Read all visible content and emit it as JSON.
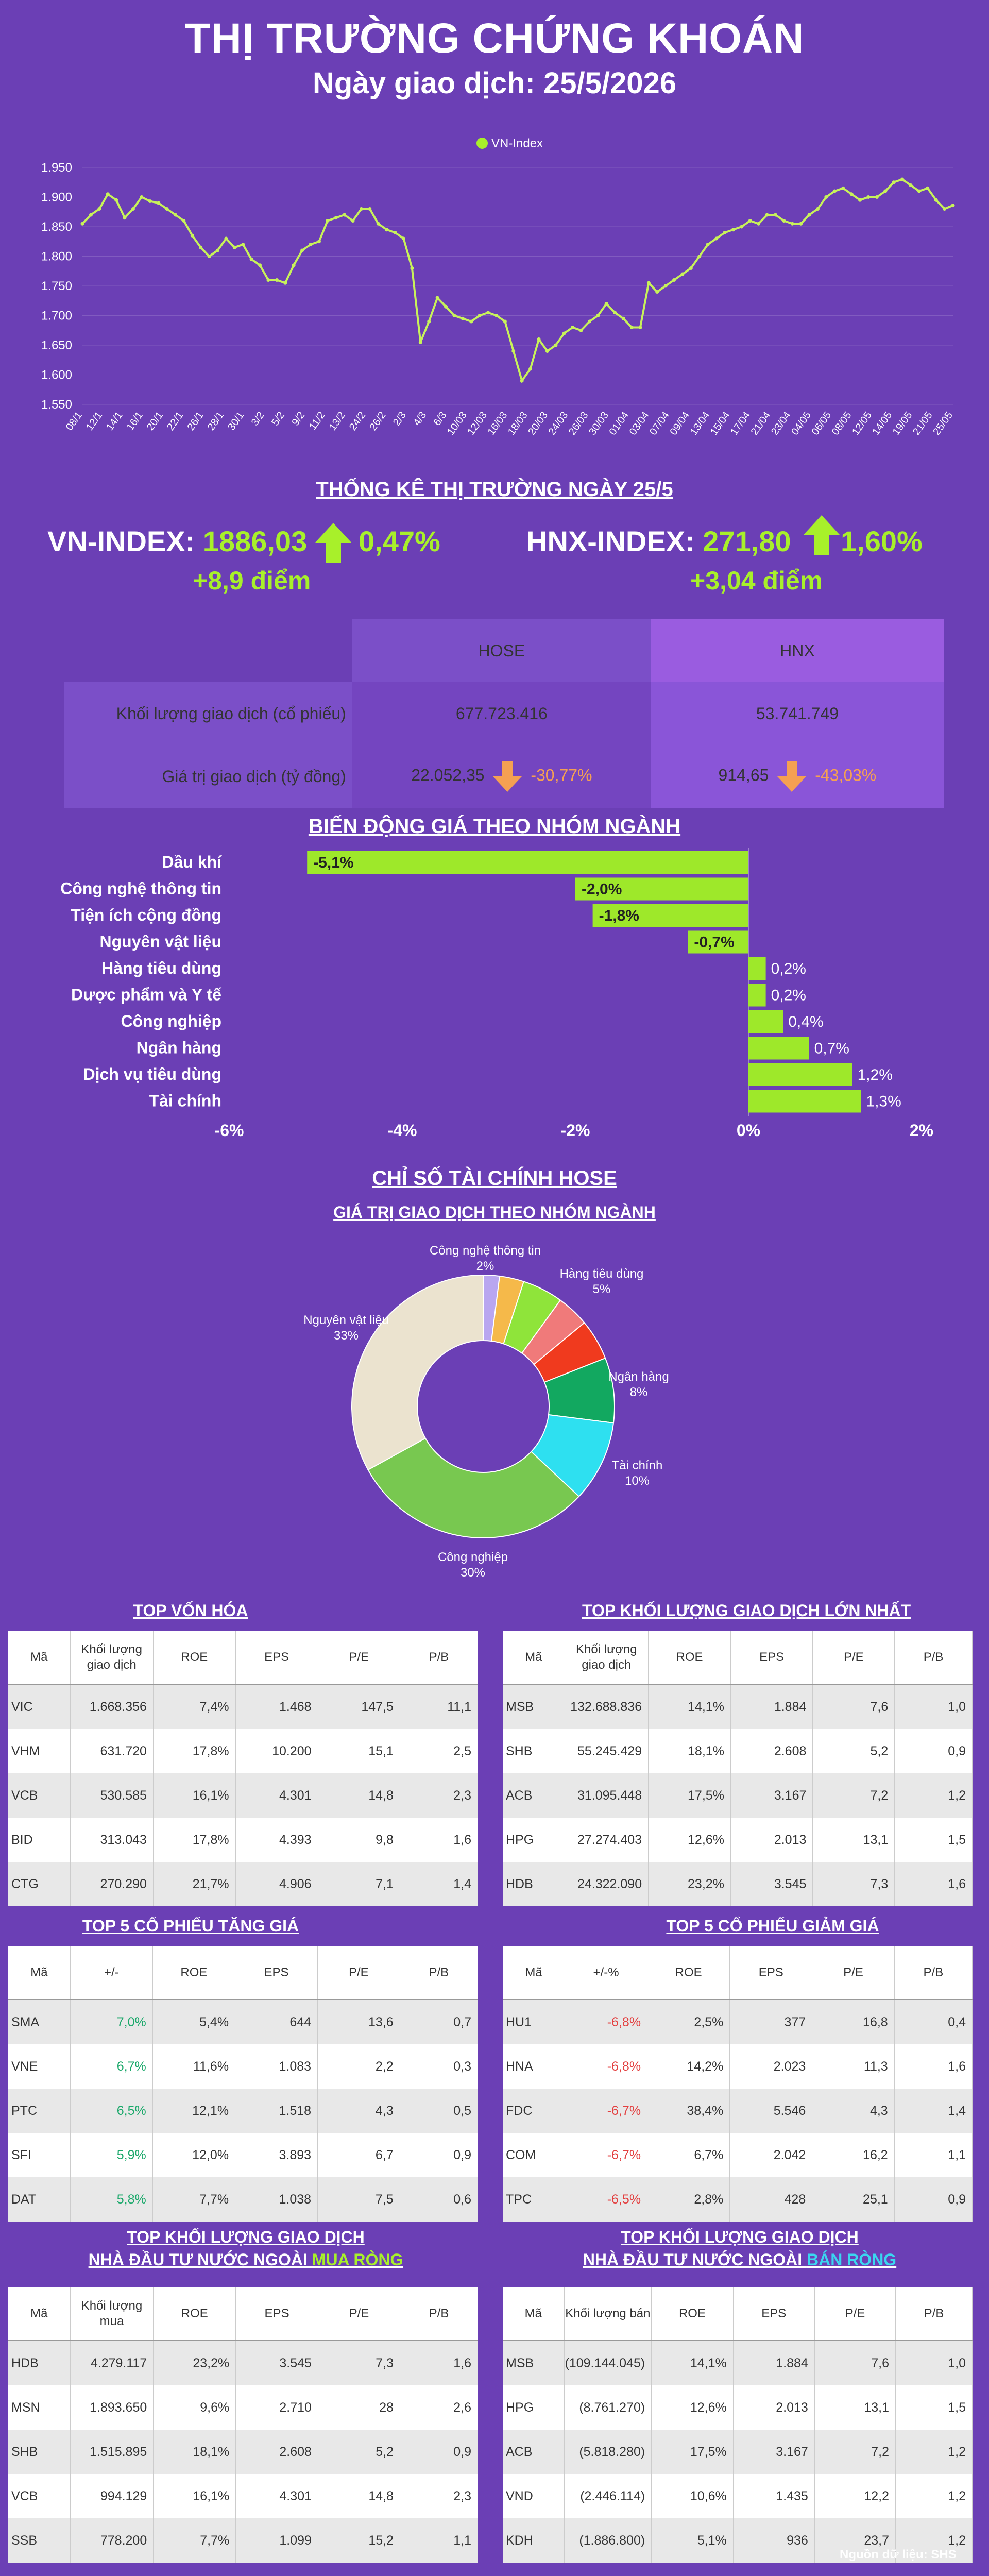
{
  "header": {
    "title": "THỊ TRƯỜNG CHỨNG KHOÁN",
    "subtitle": "Ngày giao dịch: 25/5/2026"
  },
  "colors": {
    "bg": "#6b3fb5",
    "accent": "#a8f02a",
    "down": "#f5a052"
  },
  "chart_data": [
    {
      "type": "line",
      "legend": "VN-Index",
      "ylim": [
        1550,
        1950
      ],
      "yticks": [
        "1.550",
        "1.600",
        "1.650",
        "1.700",
        "1.750",
        "1.800",
        "1.850",
        "1.900",
        "1.950"
      ],
      "xticks": [
        "08/1",
        "12/1",
        "14/1",
        "16/1",
        "20/1",
        "22/1",
        "26/1",
        "28/1",
        "30/1",
        "3/2",
        "5/2",
        "9/2",
        "11/2",
        "13/2",
        "24/2",
        "26/2",
        "2/3",
        "4/3",
        "6/3",
        "10/03",
        "12/03",
        "16/03",
        "18/03",
        "20/03",
        "24/03",
        "26/03",
        "30/03",
        "01/04",
        "03/04",
        "07/04",
        "09/04",
        "13/04",
        "15/04",
        "17/04",
        "21/04",
        "23/04",
        "04/05",
        "06/05",
        "08/05",
        "12/05",
        "14/05",
        "19/05",
        "21/05",
        "25/05"
      ],
      "values": [
        1855,
        1870,
        1880,
        1905,
        1895,
        1865,
        1880,
        1900,
        1893,
        1890,
        1880,
        1870,
        1860,
        1835,
        1815,
        1800,
        1810,
        1830,
        1815,
        1820,
        1795,
        1785,
        1760,
        1760,
        1755,
        1785,
        1810,
        1820,
        1825,
        1860,
        1865,
        1870,
        1860,
        1880,
        1880,
        1855,
        1845,
        1840,
        1830,
        1780,
        1655,
        1690,
        1730,
        1715,
        1700,
        1695,
        1690,
        1700,
        1705,
        1700,
        1690,
        1640,
        1590,
        1610,
        1660,
        1640,
        1650,
        1670,
        1680,
        1675,
        1690,
        1700,
        1720,
        1705,
        1695,
        1680,
        1680,
        1755,
        1740,
        1750,
        1760,
        1770,
        1780,
        1800,
        1820,
        1830,
        1840,
        1845,
        1850,
        1860,
        1855,
        1870,
        1870,
        1860,
        1855,
        1855,
        1870,
        1880,
        1900,
        1910,
        1915,
        1905,
        1895,
        1900,
        1900,
        1910,
        1925,
        1930,
        1920,
        1910,
        1915,
        1895,
        1880,
        1886
      ]
    },
    {
      "type": "bar",
      "title": "BIẾN ĐỘNG GIÁ THEO NHÓM NGÀNH",
      "categories": [
        "Dầu khí",
        "Công nghệ thông tin",
        "Tiện ích cộng đồng",
        "Nguyên vật liệu",
        "Hàng tiêu dùng",
        "Dược phẩm và Y tế",
        "Công nghiệp",
        "Ngân hàng",
        "Dịch vụ tiêu dùng",
        "Tài chính"
      ],
      "values": [
        -5.1,
        -2.0,
        -1.8,
        -0.7,
        0.2,
        0.2,
        0.4,
        0.7,
        1.2,
        1.3
      ],
      "labels": [
        "-5,1%",
        "-2,0%",
        "-1,8%",
        "-0,7%",
        "0,2%",
        "0,2%",
        "0,4%",
        "0,7%",
        "1,2%",
        "1,3%"
      ],
      "xlim": [
        -6,
        2
      ],
      "xticks": [
        "-6%",
        "-4%",
        "-2%",
        "0%",
        "2%"
      ]
    },
    {
      "type": "pie",
      "title": "CHỈ SỐ TÀI CHÍNH HOSE",
      "subtitle": "GIÁ TRỊ GIAO DỊCH THEO NHÓM NGÀNH",
      "slices": [
        {
          "label": "Công nghệ thông tin",
          "pct": "2%",
          "value": 2,
          "color": "#b9a6f0"
        },
        {
          "label": "",
          "pct": "",
          "value": 3,
          "color": "#f5b94a"
        },
        {
          "label": "Hàng tiêu dùng",
          "pct": "5%",
          "value": 5,
          "color": "#8fe43a"
        },
        {
          "label": "",
          "pct": "",
          "value": 4,
          "color": "#f07a7a"
        },
        {
          "label": "",
          "pct": "",
          "value": 5,
          "color": "#f03a1e"
        },
        {
          "label": "Ngân hàng",
          "pct": "8%",
          "value": 8,
          "color": "#12a860"
        },
        {
          "label": "Tài chính",
          "pct": "10%",
          "value": 10,
          "color": "#2ee0f0"
        },
        {
          "label": "Công nghiệp",
          "pct": "30%",
          "value": 30,
          "color": "#78c850"
        },
        {
          "label": "Nguyên vật liệu",
          "pct": "33%",
          "value": 33,
          "color": "#ebe3cf"
        }
      ]
    }
  ],
  "stats": {
    "title": "THỐNG KÊ THỊ TRƯỜNG NGÀY 25/5",
    "vnindex": {
      "label": "VN-INDEX:",
      "value": "1886,03",
      "pct": "0,47%",
      "points": "+8,9 điểm"
    },
    "hnxindex": {
      "label": "HNX-INDEX:",
      "value": "271,80",
      "pct": "1,60%",
      "points": "+3,04 điểm"
    },
    "col_hose": "HOSE",
    "col_hnx": "HNX",
    "row1_label": "Khối lượng giao dịch (cổ phiếu)",
    "row1_hose": "677.723.416",
    "row1_hnx": "53.741.749",
    "row2_label": "Giá trị giao dịch (tỷ đồng)",
    "row2_hose": "22.052,35",
    "row2_hose_pct": "-30,77%",
    "row2_hnx": "914,65",
    "row2_hnx_pct": "-43,03%"
  },
  "tables": {
    "t1": {
      "title": "TOP VỐN HÓA",
      "headers": [
        "Mã",
        "Khối lượng\ngiao dịch",
        "ROE",
        "EPS",
        "P/E",
        "P/B"
      ],
      "rows": [
        [
          "VIC",
          "1.668.356",
          "7,4%",
          "1.468",
          "147,5",
          "11,1"
        ],
        [
          "VHM",
          "631.720",
          "17,8%",
          "10.200",
          "15,1",
          "2,5"
        ],
        [
          "VCB",
          "530.585",
          "16,1%",
          "4.301",
          "14,8",
          "2,3"
        ],
        [
          "BID",
          "313.043",
          "17,8%",
          "4.393",
          "9,8",
          "1,6"
        ],
        [
          "CTG",
          "270.290",
          "21,7%",
          "4.906",
          "7,1",
          "1,4"
        ]
      ]
    },
    "t2": {
      "title": "TOP KHỐI LƯỢNG GIAO DỊCH LỚN NHẤT",
      "headers": [
        "Mã",
        "Khối lượng\ngiao dịch",
        "ROE",
        "EPS",
        "P/E",
        "P/B"
      ],
      "rows": [
        [
          "MSB",
          "132.688.836",
          "14,1%",
          "1.884",
          "7,6",
          "1,0"
        ],
        [
          "SHB",
          "55.245.429",
          "18,1%",
          "2.608",
          "5,2",
          "0,9"
        ],
        [
          "ACB",
          "31.095.448",
          "17,5%",
          "3.167",
          "7,2",
          "1,2"
        ],
        [
          "HPG",
          "27.274.403",
          "12,6%",
          "2.013",
          "13,1",
          "1,5"
        ],
        [
          "HDB",
          "24.322.090",
          "23,2%",
          "3.545",
          "7,3",
          "1,6"
        ]
      ]
    },
    "t3": {
      "title": "TOP 5 CỔ PHIẾU TĂNG GIÁ",
      "headers": [
        "Mã",
        "+/-",
        "ROE",
        "EPS",
        "P/E",
        "P/B"
      ],
      "rows": [
        [
          "SMA",
          "7,0%",
          "5,4%",
          "644",
          "13,6",
          "0,7"
        ],
        [
          "VNE",
          "6,7%",
          "11,6%",
          "1.083",
          "2,2",
          "0,3"
        ],
        [
          "PTC",
          "6,5%",
          "12,1%",
          "1.518",
          "4,3",
          "0,5"
        ],
        [
          "SFI",
          "5,9%",
          "12,0%",
          "3.893",
          "6,7",
          "0,9"
        ],
        [
          "DAT",
          "5,8%",
          "7,7%",
          "1.038",
          "7,5",
          "0,6"
        ]
      ]
    },
    "t4": {
      "title": "TOP 5 CỔ PHIẾU GIẢM GIÁ",
      "headers": [
        "Mã",
        "+/-%",
        "ROE",
        "EPS",
        "P/E",
        "P/B"
      ],
      "rows": [
        [
          "HU1",
          "-6,8%",
          "2,5%",
          "377",
          "16,8",
          "0,4"
        ],
        [
          "HNA",
          "-6,8%",
          "14,2%",
          "2.023",
          "11,3",
          "1,6"
        ],
        [
          "FDC",
          "-6,7%",
          "38,4%",
          "5.546",
          "4,3",
          "1,4"
        ],
        [
          "COM",
          "-6,7%",
          "6,7%",
          "2.042",
          "16,2",
          "1,1"
        ],
        [
          "TPC",
          "-6,5%",
          "2,8%",
          "428",
          "25,1",
          "0,9"
        ]
      ]
    },
    "t5": {
      "title_l1": "TOP KHỐI LƯỢNG GIAO DỊCH",
      "title_l2a": "NHÀ ĐẦU TƯ NƯỚC NGOÀI ",
      "title_l2b": "MUA RÒNG",
      "headers": [
        "Mã",
        "Khối lượng\nmua",
        "ROE",
        "EPS",
        "P/E",
        "P/B"
      ],
      "rows": [
        [
          "HDB",
          "4.279.117",
          "23,2%",
          "3.545",
          "7,3",
          "1,6"
        ],
        [
          "MSN",
          "1.893.650",
          "9,6%",
          "2.710",
          "28",
          "2,6"
        ],
        [
          "SHB",
          "1.515.895",
          "18,1%",
          "2.608",
          "5,2",
          "0,9"
        ],
        [
          "VCB",
          "994.129",
          "16,1%",
          "4.301",
          "14,8",
          "2,3"
        ],
        [
          "SSB",
          "778.200",
          "7,7%",
          "1.099",
          "15,2",
          "1,1"
        ]
      ]
    },
    "t6": {
      "title_l1": "TOP KHỐI LƯỢNG GIAO DỊCH",
      "title_l2a": "NHÀ ĐẦU TƯ NƯỚC NGOÀI ",
      "title_l2b": "BÁN RÒNG",
      "headers": [
        "Mã",
        "Khối lượng bán",
        "ROE",
        "EPS",
        "P/E",
        "P/B"
      ],
      "rows": [
        [
          "MSB",
          "(109.144.045)",
          "14,1%",
          "1.884",
          "7,6",
          "1,0"
        ],
        [
          "HPG",
          "(8.761.270)",
          "12,6%",
          "2.013",
          "13,1",
          "1,5"
        ],
        [
          "ACB",
          "(5.818.280)",
          "17,5%",
          "3.167",
          "7,2",
          "1,2"
        ],
        [
          "VND",
          "(2.446.114)",
          "10,6%",
          "1.435",
          "12,2",
          "1,2"
        ],
        [
          "KDH",
          "(1.886.800)",
          "5,1%",
          "936",
          "23,7",
          "1,2"
        ]
      ]
    }
  },
  "footer": {
    "source": "Nguồn dữ liệu: SHS"
  }
}
